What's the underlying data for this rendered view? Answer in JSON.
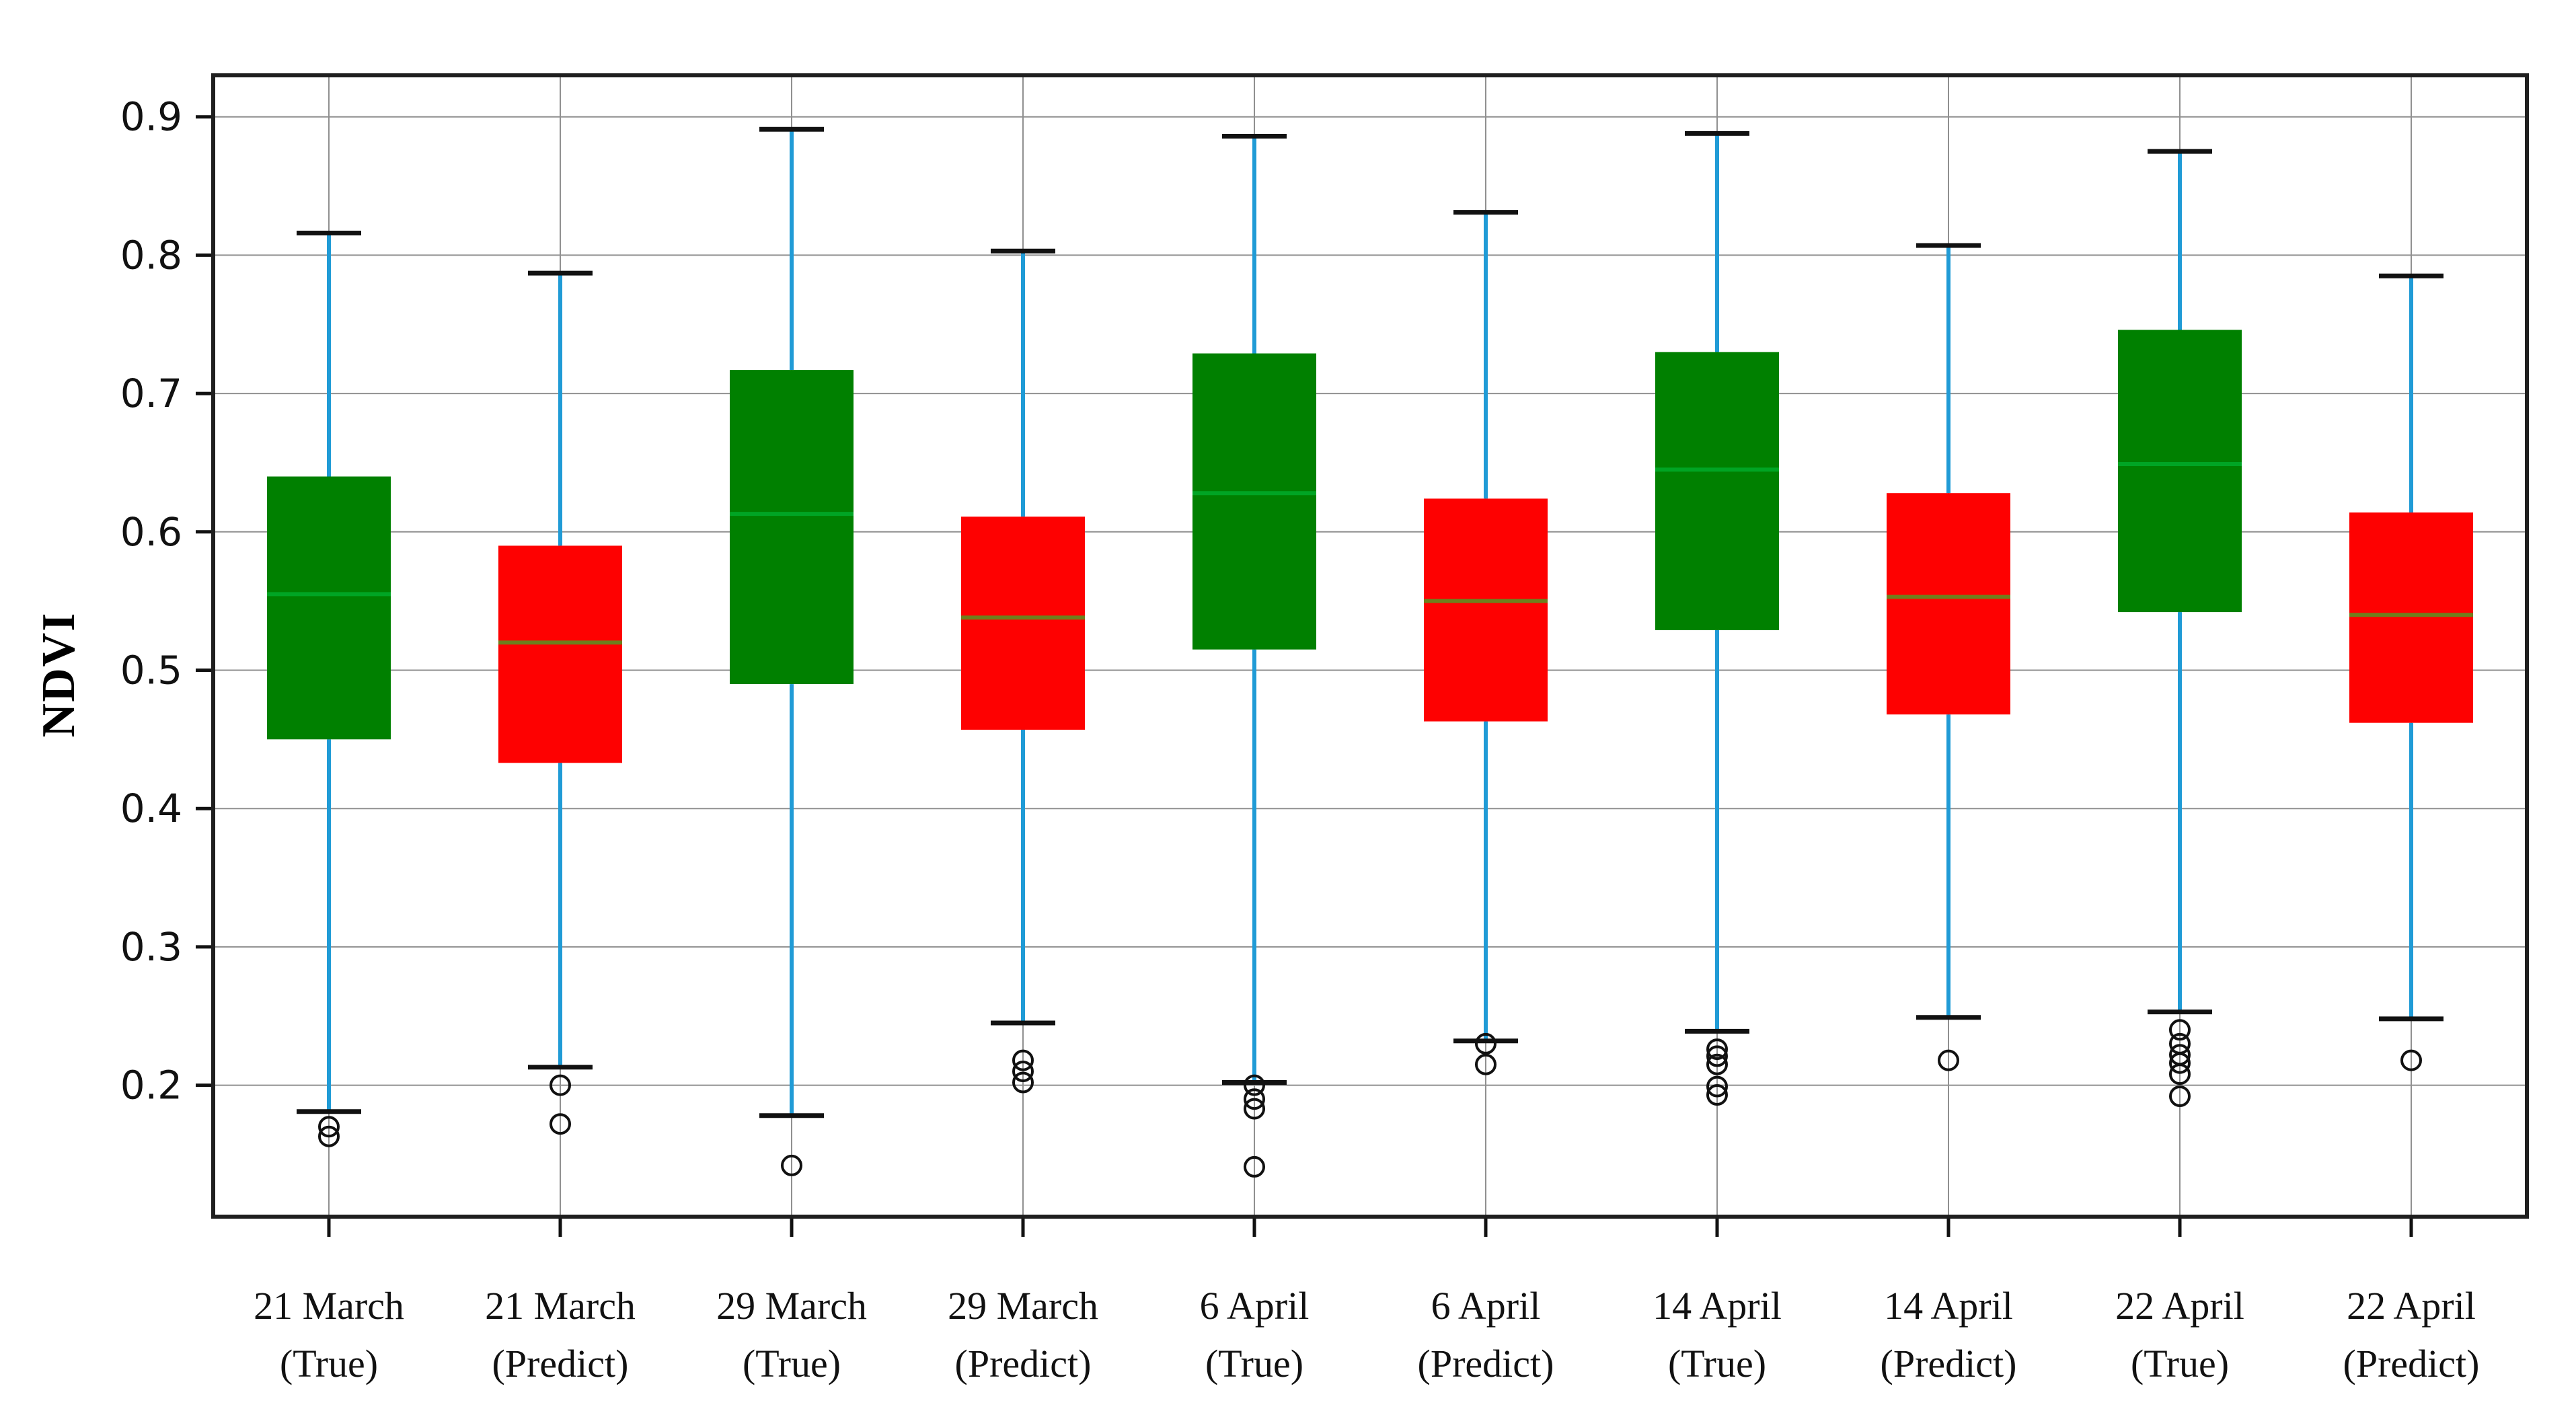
{
  "chart_data": {
    "type": "boxplot",
    "title": "",
    "xlabel": "",
    "ylabel": "NDVI",
    "ylim": [
      0.105,
      0.93
    ],
    "yticks": [
      0.2,
      0.3,
      0.4,
      0.5,
      0.6,
      0.7,
      0.8,
      0.9
    ],
    "grid": "both",
    "legend": "none",
    "categories": [
      "21 March (True)",
      "21 March (Predict)",
      "29 March (True)",
      "29 March (Predict)",
      "6 April (True)",
      "6 April (Predict)",
      "14 April (True)",
      "14 April (Predict)",
      "22 April (True)",
      "22 April (Predict)"
    ],
    "colors": {
      "box_true": "#008000",
      "box_predict": "#fe0101",
      "median_true": "#00a524",
      "median_predict": "#6e7f1d",
      "whisker": "#209bd6",
      "cap": "#111111",
      "outlier_stroke": "#111111",
      "grid": "#909090",
      "frame": "#1f1f1f",
      "text": "#111111"
    },
    "boxes": [
      {
        "id": "21-march-true",
        "label_line1": "21 March",
        "label_line2": "(True)",
        "group": "true",
        "whisker_low": 0.181,
        "q1": 0.45,
        "median": 0.555,
        "q3": 0.64,
        "whisker_high": 0.816,
        "outliers": [
          0.17,
          0.163
        ]
      },
      {
        "id": "21-march-predict",
        "label_line1": "21 March",
        "label_line2": "(Predict)",
        "group": "predict",
        "whisker_low": 0.213,
        "q1": 0.433,
        "median": 0.52,
        "q3": 0.59,
        "whisker_high": 0.787,
        "outliers": [
          0.2,
          0.172
        ]
      },
      {
        "id": "29-march-true",
        "label_line1": "29 March",
        "label_line2": "(True)",
        "group": "true",
        "whisker_low": 0.178,
        "q1": 0.49,
        "median": 0.613,
        "q3": 0.717,
        "whisker_high": 0.891,
        "outliers": [
          0.142
        ]
      },
      {
        "id": "29-march-predict",
        "label_line1": "29 March",
        "label_line2": "(Predict)",
        "group": "predict",
        "whisker_low": 0.245,
        "q1": 0.457,
        "median": 0.538,
        "q3": 0.611,
        "whisker_high": 0.803,
        "outliers": [
          0.218,
          0.21,
          0.202
        ]
      },
      {
        "id": "6-april-true",
        "label_line1": "6 April",
        "label_line2": "(True)",
        "group": "true",
        "whisker_low": 0.202,
        "q1": 0.515,
        "median": 0.628,
        "q3": 0.729,
        "whisker_high": 0.886,
        "outliers": [
          0.2,
          0.19,
          0.183,
          0.141
        ]
      },
      {
        "id": "6-april-predict",
        "label_line1": "6 April",
        "label_line2": "(Predict)",
        "group": "predict",
        "whisker_low": 0.232,
        "q1": 0.463,
        "median": 0.55,
        "q3": 0.624,
        "whisker_high": 0.831,
        "outliers": [
          0.23,
          0.215
        ]
      },
      {
        "id": "14-april-true",
        "label_line1": "14 April",
        "label_line2": "(True)",
        "group": "true",
        "whisker_low": 0.239,
        "q1": 0.529,
        "median": 0.645,
        "q3": 0.73,
        "whisker_high": 0.888,
        "outliers": [
          0.226,
          0.221,
          0.215,
          0.199,
          0.193
        ]
      },
      {
        "id": "14-april-predict",
        "label_line1": "14 April",
        "label_line2": "(Predict)",
        "group": "predict",
        "whisker_low": 0.249,
        "q1": 0.468,
        "median": 0.553,
        "q3": 0.628,
        "whisker_high": 0.807,
        "outliers": [
          0.218
        ]
      },
      {
        "id": "22-april-true",
        "label_line1": "22 April",
        "label_line2": "(True)",
        "group": "true",
        "whisker_low": 0.253,
        "q1": 0.542,
        "median": 0.649,
        "q3": 0.746,
        "whisker_high": 0.875,
        "outliers": [
          0.24,
          0.23,
          0.222,
          0.216,
          0.208,
          0.192
        ]
      },
      {
        "id": "22-april-predict",
        "label_line1": "22 April",
        "label_line2": "(Predict)",
        "group": "predict",
        "whisker_low": 0.248,
        "q1": 0.462,
        "median": 0.54,
        "q3": 0.614,
        "whisker_high": 0.785,
        "outliers": [
          0.218
        ]
      }
    ]
  }
}
